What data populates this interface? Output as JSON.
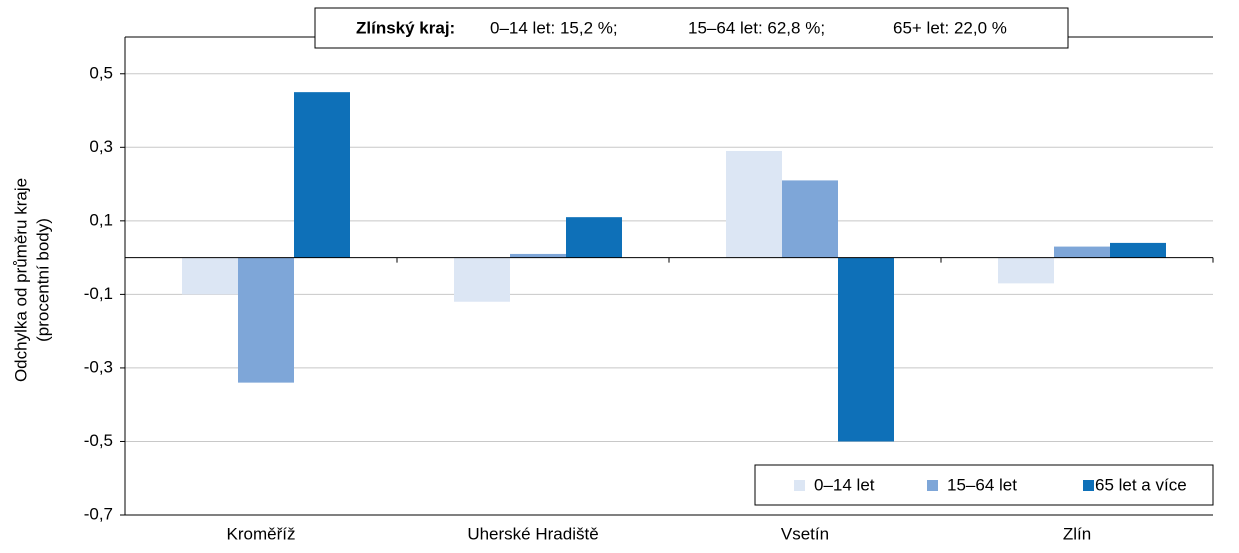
{
  "chart_data": {
    "type": "bar",
    "title_parts": [
      "Zlínský kraj:",
      "0–14 let: 15,2 %;",
      "15–64 let: 62,8 %;",
      "65+ let: 22,0 %"
    ],
    "y_label": [
      "Odchylka od průměru kraje",
      "(procentní body)"
    ],
    "categories": [
      "Kroměříž",
      "Uherské Hradiště",
      "Vsetín",
      "Zlín"
    ],
    "series": [
      {
        "name": "0–14 let",
        "color": "#dce6f4",
        "values": [
          -0.1,
          -0.12,
          0.29,
          -0.07
        ]
      },
      {
        "name": "15–64 let",
        "color": "#7ea6d8",
        "values": [
          -0.34,
          0.01,
          0.21,
          0.03
        ]
      },
      {
        "name": "65 let a více",
        "color": "#0e70b8",
        "values": [
          0.45,
          0.11,
          -0.5,
          0.04
        ]
      }
    ],
    "ylim": [
      -0.7,
      0.6
    ],
    "yticks": [
      {
        "value": -0.7,
        "label": "-0,7"
      },
      {
        "value": -0.5,
        "label": "-0,5"
      },
      {
        "value": -0.3,
        "label": "-0,3"
      },
      {
        "value": -0.1,
        "label": "-0,1"
      },
      {
        "value": 0.1,
        "label": "0,1"
      },
      {
        "value": 0.3,
        "label": "0,3"
      },
      {
        "value": 0.5,
        "label": "0,5"
      }
    ],
    "grid": true,
    "legend": "bottom-right"
  }
}
